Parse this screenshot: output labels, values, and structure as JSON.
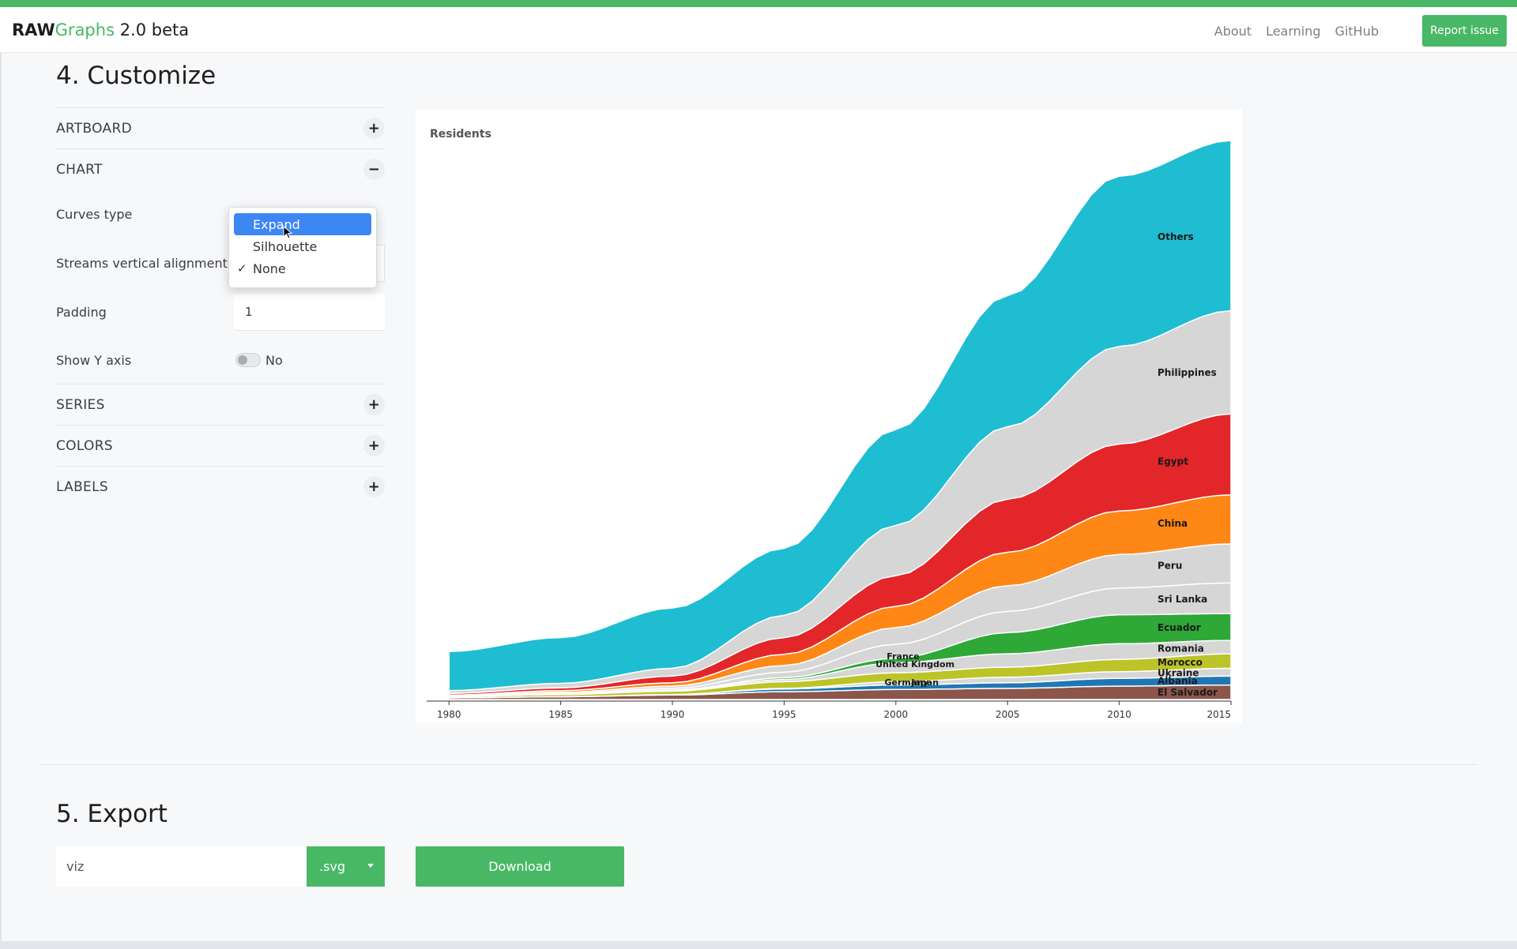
{
  "nav": {
    "brand_raw": "RAW",
    "brand_graphs": "Graphs",
    "brand_version": " 2.0 beta",
    "links": [
      "About",
      "Learning",
      "GitHub"
    ],
    "report_label": "Report issue"
  },
  "customize": {
    "title": "4. Customize",
    "artboard": "ARTBOARD",
    "chart": "CHART",
    "series": "SERIES",
    "colors": "COLORS",
    "labels": "LABELS",
    "plus": "+",
    "minus": "−",
    "curves_type_label": "Curves type",
    "streams_alignment_label": "Streams vertical alignment",
    "padding_label": "Padding",
    "padding_value": "1",
    "show_y_axis_label": "Show Y axis",
    "show_y_axis_value": "No",
    "dropdown_options": [
      "Expand",
      "Silhouette",
      "None"
    ],
    "dropdown_checked": "None",
    "dropdown_highlighted": "Expand"
  },
  "export": {
    "title": "5. Export",
    "filename": "viz",
    "format": ".svg",
    "download_label": "Download"
  },
  "chart_data": {
    "type": "area",
    "subtype": "streamgraph",
    "title": "Residents",
    "x": [
      1980,
      1985,
      1990,
      1995,
      2000,
      2005,
      2010,
      2015
    ],
    "xlim": [
      1979,
      2015
    ],
    "y_axis_visible": false,
    "streams_order_bottom_to_top": [
      "El Salvador",
      "Albania",
      "Ukraine",
      "Morocco",
      "Romania",
      "Ecuador",
      "Sri Lanka",
      "Peru",
      "China",
      "Egypt",
      "Philippines",
      "Others"
    ],
    "series": [
      {
        "name": "Others",
        "color": "#1fbdd2",
        "values": [
          70,
          82,
          108,
          120,
          172,
          235,
          305,
          305
        ]
      },
      {
        "name": "Philippines",
        "color": "#d6d6d6",
        "values": [
          5,
          8,
          14,
          40,
          90,
          130,
          175,
          185
        ]
      },
      {
        "name": "Egypt",
        "color": "#e2262a",
        "values": [
          3,
          5,
          12,
          30,
          55,
          95,
          120,
          145
        ]
      },
      {
        "name": "China",
        "color": "#ff8715",
        "values": [
          1,
          3,
          6,
          20,
          38,
          60,
          78,
          88
        ]
      },
      {
        "name": "Peru",
        "color": "#d6d6d6",
        "values": [
          1,
          2,
          4,
          12,
          30,
          46,
          60,
          70
        ]
      },
      {
        "name": "Sri Lanka",
        "color": "#d6d6d6",
        "values": [
          1,
          1,
          3,
          10,
          25,
          38,
          48,
          55
        ]
      },
      {
        "name": "Ecuador",
        "color": "#2ea836",
        "values": [
          0,
          1,
          1,
          3,
          8,
          38,
          52,
          48
        ]
      },
      {
        "name": "Romania",
        "color": "#d6d6d6",
        "values": [
          0,
          0,
          1,
          4,
          18,
          24,
          28,
          24
        ]
      },
      {
        "name": "Morocco",
        "color": "#bcc427",
        "values": [
          2,
          4,
          6,
          12,
          16,
          18,
          22,
          26
        ]
      },
      {
        "name": "Ukraine",
        "color": "#d6d6d6",
        "values": [
          0,
          0,
          0,
          1,
          6,
          10,
          12,
          14
        ]
      },
      {
        "name": "Albania",
        "color": "#1f78b4",
        "values": [
          0,
          0,
          1,
          5,
          8,
          10,
          14,
          16
        ]
      },
      {
        "name": "El Salvador",
        "color": "#8c564b",
        "values": [
          3,
          5,
          8,
          14,
          18,
          20,
          24,
          26
        ]
      }
    ],
    "other_labels": [
      "United Kingdom",
      "France",
      "Germany",
      "Japan"
    ]
  }
}
